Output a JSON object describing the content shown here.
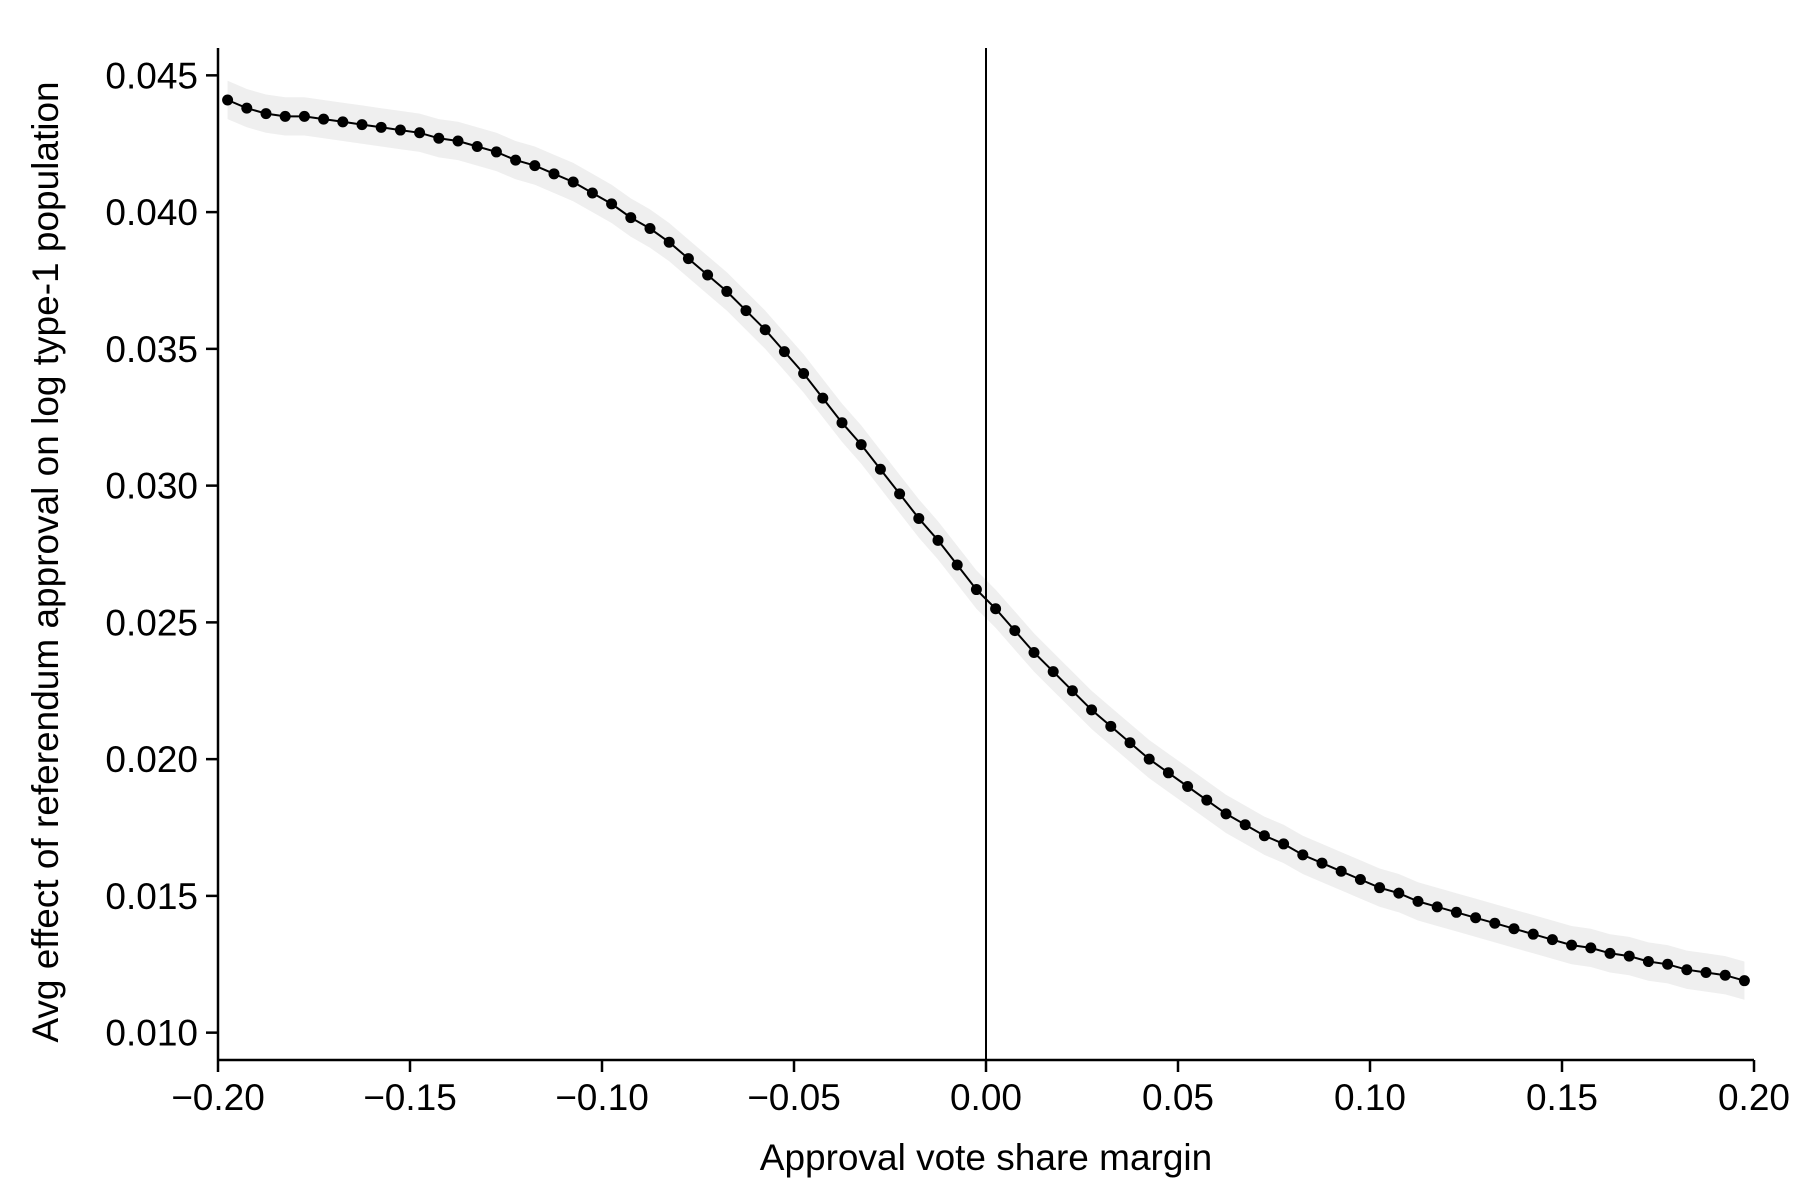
{
  "chart_data": {
    "type": "line",
    "xlabel": "Approval vote share margin",
    "ylabel": "Avg effect of referendum approval on log type-1 population",
    "xlim": [
      -0.2,
      0.2
    ],
    "ylim": [
      0.009,
      0.046
    ],
    "x_ticks": [
      -0.2,
      -0.15,
      -0.1,
      -0.05,
      0.0,
      0.05,
      0.1,
      0.15,
      0.2
    ],
    "x_tick_labels": [
      "−0.20",
      "−0.15",
      "−0.10",
      "−0.05",
      "0.00",
      "0.05",
      "0.10",
      "0.15",
      "0.20"
    ],
    "y_ticks": [
      0.01,
      0.015,
      0.02,
      0.025,
      0.03,
      0.035,
      0.04,
      0.045
    ],
    "y_tick_labels": [
      "0.010",
      "0.015",
      "0.020",
      "0.025",
      "0.030",
      "0.035",
      "0.040",
      "0.045"
    ],
    "reference_line_x": 0.0,
    "grid": false,
    "series_color": "#000000",
    "band_color": "#efefef",
    "band_half_width": 0.0007,
    "series": [
      {
        "x": [
          -0.1975,
          -0.1925,
          -0.1875,
          -0.1825,
          -0.1775,
          -0.1725,
          -0.1675,
          -0.1625,
          -0.1575,
          -0.1525,
          -0.1475,
          -0.1425,
          -0.1375,
          -0.1325,
          -0.1275,
          -0.1225,
          -0.1175,
          -0.1125,
          -0.1075,
          -0.1025,
          -0.0975,
          -0.0925,
          -0.0875,
          -0.0825,
          -0.0775,
          -0.0725,
          -0.0675,
          -0.0625,
          -0.0575,
          -0.0525,
          -0.0475,
          -0.0425,
          -0.0375,
          -0.0325,
          -0.0275,
          -0.0225,
          -0.0175,
          -0.0125,
          -0.0075,
          -0.0025,
          0.0025,
          0.0075,
          0.0125,
          0.0175,
          0.0225,
          0.0275,
          0.0325,
          0.0375,
          0.0425,
          0.0475,
          0.0525,
          0.0575,
          0.0625,
          0.0675,
          0.0725,
          0.0775,
          0.0825,
          0.0875,
          0.0925,
          0.0975,
          0.1025,
          0.1075,
          0.1125,
          0.1175,
          0.1225,
          0.1275,
          0.1325,
          0.1375,
          0.1425,
          0.1475,
          0.1525,
          0.1575,
          0.1625,
          0.1675,
          0.1725,
          0.1775,
          0.1825,
          0.1875,
          0.1925,
          0.1975
        ],
        "y": [
          0.0441,
          0.0438,
          0.0436,
          0.0435,
          0.0435,
          0.0434,
          0.0433,
          0.0432,
          0.0431,
          0.043,
          0.0429,
          0.0427,
          0.0426,
          0.0424,
          0.0422,
          0.0419,
          0.0417,
          0.0414,
          0.0411,
          0.0407,
          0.0403,
          0.0398,
          0.0394,
          0.0389,
          0.0383,
          0.0377,
          0.0371,
          0.0364,
          0.0357,
          0.0349,
          0.0341,
          0.0332,
          0.0323,
          0.0315,
          0.0306,
          0.0297,
          0.0288,
          0.028,
          0.0271,
          0.0262,
          0.0255,
          0.0247,
          0.0239,
          0.0232,
          0.0225,
          0.0218,
          0.0212,
          0.0206,
          0.02,
          0.0195,
          0.019,
          0.0185,
          0.018,
          0.0176,
          0.0172,
          0.0169,
          0.0165,
          0.0162,
          0.0159,
          0.0156,
          0.0153,
          0.0151,
          0.0148,
          0.0146,
          0.0144,
          0.0142,
          0.014,
          0.0138,
          0.0136,
          0.0134,
          0.0132,
          0.0131,
          0.0129,
          0.0128,
          0.0126,
          0.0125,
          0.0123,
          0.0122,
          0.0121,
          0.0119
        ]
      }
    ]
  }
}
